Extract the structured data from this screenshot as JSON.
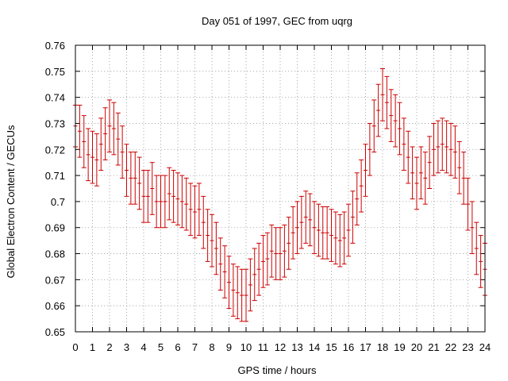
{
  "chart_data": {
    "type": "scatter",
    "title": "Day 051 of 1997, GEC from uqrg",
    "xlabel": "GPS time / hours",
    "ylabel": "Global Electron Content / GECUs",
    "xlim": [
      0,
      24
    ],
    "ylim": [
      0.65,
      0.76
    ],
    "xticks": [
      "0",
      "1",
      "2",
      "3",
      "4",
      "5",
      "6",
      "7",
      "8",
      "9",
      "10",
      "11",
      "12",
      "13",
      "14",
      "15",
      "16",
      "17",
      "18",
      "19",
      "20",
      "21",
      "22",
      "23",
      "24"
    ],
    "yticks": [
      "0.65",
      "0.66",
      "0.67",
      "0.68",
      "0.69",
      "0.7",
      "0.71",
      "0.72",
      "0.73",
      "0.74",
      "0.75",
      "0.76"
    ],
    "grid": true,
    "error_bars": true,
    "series_color": "#cc0000",
    "points": [
      [
        0.0,
        0.729,
        0.008
      ],
      [
        0.25,
        0.727,
        0.01
      ],
      [
        0.5,
        0.723,
        0.01
      ],
      [
        0.75,
        0.718,
        0.01
      ],
      [
        1.0,
        0.717,
        0.01
      ],
      [
        1.25,
        0.716,
        0.01
      ],
      [
        1.5,
        0.722,
        0.01
      ],
      [
        1.75,
        0.726,
        0.01
      ],
      [
        2.0,
        0.729,
        0.01
      ],
      [
        2.25,
        0.728,
        0.01
      ],
      [
        2.5,
        0.724,
        0.01
      ],
      [
        2.75,
        0.719,
        0.01
      ],
      [
        3.0,
        0.712,
        0.01
      ],
      [
        3.25,
        0.709,
        0.01
      ],
      [
        3.5,
        0.709,
        0.01
      ],
      [
        3.75,
        0.707,
        0.01
      ],
      [
        4.0,
        0.702,
        0.01
      ],
      [
        4.25,
        0.702,
        0.01
      ],
      [
        4.5,
        0.705,
        0.01
      ],
      [
        4.75,
        0.7,
        0.01
      ],
      [
        5.0,
        0.7,
        0.01
      ],
      [
        5.25,
        0.7,
        0.01
      ],
      [
        5.5,
        0.703,
        0.01
      ],
      [
        5.75,
        0.702,
        0.01
      ],
      [
        6.0,
        0.701,
        0.01
      ],
      [
        6.25,
        0.7,
        0.01
      ],
      [
        6.5,
        0.699,
        0.01
      ],
      [
        6.75,
        0.697,
        0.01
      ],
      [
        7.0,
        0.696,
        0.01
      ],
      [
        7.25,
        0.697,
        0.01
      ],
      [
        7.5,
        0.692,
        0.01
      ],
      [
        7.75,
        0.687,
        0.01
      ],
      [
        8.0,
        0.685,
        0.01
      ],
      [
        8.25,
        0.682,
        0.01
      ],
      [
        8.5,
        0.676,
        0.01
      ],
      [
        8.75,
        0.673,
        0.01
      ],
      [
        9.0,
        0.669,
        0.01
      ],
      [
        9.25,
        0.666,
        0.01
      ],
      [
        9.5,
        0.665,
        0.01
      ],
      [
        9.75,
        0.664,
        0.01
      ],
      [
        10.0,
        0.664,
        0.01
      ],
      [
        10.25,
        0.668,
        0.01
      ],
      [
        10.5,
        0.672,
        0.01
      ],
      [
        10.75,
        0.674,
        0.01
      ],
      [
        11.0,
        0.677,
        0.01
      ],
      [
        11.25,
        0.678,
        0.01
      ],
      [
        11.5,
        0.681,
        0.01
      ],
      [
        11.75,
        0.68,
        0.01
      ],
      [
        12.0,
        0.68,
        0.01
      ],
      [
        12.25,
        0.681,
        0.01
      ],
      [
        12.5,
        0.684,
        0.01
      ],
      [
        12.75,
        0.688,
        0.01
      ],
      [
        13.0,
        0.69,
        0.01
      ],
      [
        13.25,
        0.692,
        0.01
      ],
      [
        13.5,
        0.694,
        0.01
      ],
      [
        13.75,
        0.693,
        0.01
      ],
      [
        14.0,
        0.69,
        0.01
      ],
      [
        14.25,
        0.689,
        0.01
      ],
      [
        14.5,
        0.688,
        0.01
      ],
      [
        14.75,
        0.688,
        0.01
      ],
      [
        15.0,
        0.687,
        0.01
      ],
      [
        15.25,
        0.686,
        0.01
      ],
      [
        15.5,
        0.685,
        0.01
      ],
      [
        15.75,
        0.686,
        0.01
      ],
      [
        16.0,
        0.689,
        0.01
      ],
      [
        16.25,
        0.694,
        0.01
      ],
      [
        16.5,
        0.701,
        0.01
      ],
      [
        16.75,
        0.706,
        0.01
      ],
      [
        17.0,
        0.712,
        0.01
      ],
      [
        17.25,
        0.72,
        0.01
      ],
      [
        17.5,
        0.729,
        0.01
      ],
      [
        17.75,
        0.735,
        0.01
      ],
      [
        18.0,
        0.741,
        0.01
      ],
      [
        18.25,
        0.738,
        0.01
      ],
      [
        18.5,
        0.733,
        0.01
      ],
      [
        18.75,
        0.731,
        0.01
      ],
      [
        19.0,
        0.728,
        0.01
      ],
      [
        19.25,
        0.722,
        0.01
      ],
      [
        19.5,
        0.717,
        0.01
      ],
      [
        19.75,
        0.711,
        0.01
      ],
      [
        20.0,
        0.707,
        0.01
      ],
      [
        20.25,
        0.711,
        0.01
      ],
      [
        20.5,
        0.709,
        0.01
      ],
      [
        20.75,
        0.715,
        0.01
      ],
      [
        21.0,
        0.72,
        0.01
      ],
      [
        21.25,
        0.721,
        0.01
      ],
      [
        21.5,
        0.722,
        0.01
      ],
      [
        21.75,
        0.721,
        0.01
      ],
      [
        22.0,
        0.72,
        0.01
      ],
      [
        22.25,
        0.719,
        0.01
      ],
      [
        22.5,
        0.713,
        0.01
      ],
      [
        22.75,
        0.709,
        0.01
      ],
      [
        23.0,
        0.699,
        0.01
      ],
      [
        23.25,
        0.69,
        0.01
      ],
      [
        23.5,
        0.682,
        0.01
      ],
      [
        23.75,
        0.677,
        0.01
      ],
      [
        24.0,
        0.674,
        0.01
      ]
    ]
  }
}
